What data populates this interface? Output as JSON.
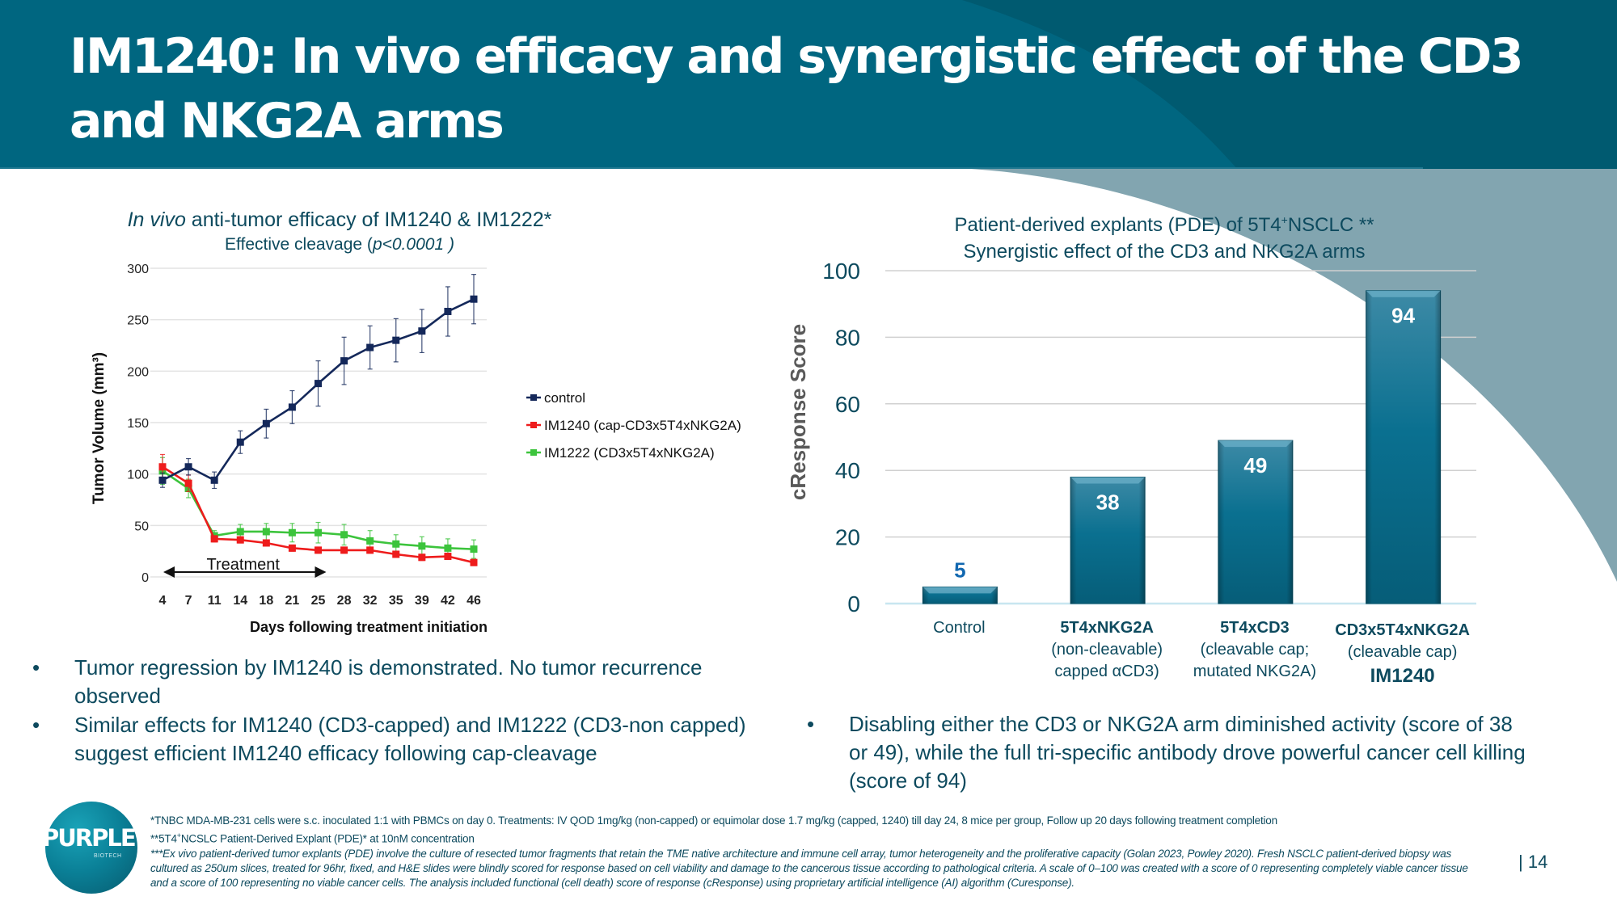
{
  "slide": {
    "title": "IM1240: In vivo efficacy and synergistic effect of the CD3 and NKG2A arms",
    "page_number": "| 14",
    "colors": {
      "header": "#006680",
      "header_dark": "#005a70",
      "accent_light": "#82a5b0",
      "text": "#0d4a5e"
    }
  },
  "left_chart_header": {
    "title_italic": "In vivo",
    "title_rest": " anti-tumor efficacy of IM1240 & IM1222*",
    "subtitle_prefix": "Effective cleavage (",
    "subtitle_italic": "p<0.0001 )"
  },
  "right_chart_header": {
    "title_prefix": "Patient-derived explants (PDE) of 5T4",
    "title_sup": "+",
    "title_suffix": "NSCLC **",
    "subtitle": "Synergistic effect of the CD3 and NKG2A arms"
  },
  "chart_data": [
    {
      "type": "line",
      "title": "In vivo anti-tumor efficacy of IM1240 & IM1222*",
      "subtitle": "Effective cleavage (p<0.0001 )",
      "xlabel": "Days following treatment initiation",
      "ylabel": "Tumor Volume (mm³)",
      "x": [
        "4",
        "7",
        "11",
        "14",
        "18",
        "21",
        "25",
        "28",
        "32",
        "35",
        "39",
        "42",
        "46"
      ],
      "ylim": [
        0,
        300
      ],
      "yticks": [
        0,
        50,
        100,
        150,
        200,
        250,
        300
      ],
      "grid": true,
      "legend_position": "right",
      "series": [
        {
          "name": "control",
          "color": "#14285a",
          "values": [
            94,
            107,
            94,
            131,
            149,
            165,
            188,
            210,
            223,
            230,
            239,
            258,
            270
          ],
          "error": [
            7,
            8,
            8,
            11,
            14,
            16,
            22,
            23,
            21,
            21,
            21,
            24,
            24
          ]
        },
        {
          "name": "IM1240 (cap-CD3x5T4xNKG2A)",
          "color": "#ee1c1c",
          "values": [
            107,
            91,
            37,
            36,
            33,
            28,
            26,
            26,
            26,
            22,
            19,
            20,
            14
          ],
          "error": [
            12,
            8,
            3,
            3,
            3,
            3,
            3,
            3,
            3,
            3,
            3,
            3,
            3
          ]
        },
        {
          "name": "IM1222 (CD3x5T4xNKG2A)",
          "color": "#3cc43c",
          "values": [
            103,
            86,
            40,
            44,
            44,
            43,
            43,
            41,
            35,
            32,
            30,
            28,
            27
          ],
          "error": [
            13,
            9,
            5,
            7,
            8,
            9,
            10,
            10,
            10,
            9,
            9,
            9,
            9
          ]
        }
      ],
      "annotations": [
        {
          "text": "Treatment",
          "type": "double-arrow",
          "x_from": "4",
          "x_to": "25"
        }
      ]
    },
    {
      "type": "bar",
      "title": "Patient-derived explants (PDE) of 5T4+NSCLC **",
      "subtitle": "Synergistic effect of the CD3 and NKG2A arms",
      "ylabel": "cResponse Score",
      "xlabel": "",
      "ylim": [
        0,
        100
      ],
      "yticks": [
        0,
        20,
        40,
        60,
        80,
        100
      ],
      "grid": true,
      "categories": [
        "Control",
        "5T4xNKG2A (non-cleavable) capped αCD3)",
        "5T4xCD3 (cleavable cap; mutated NKG2A)",
        "CD3x5T4xNKG2A (cleavable cap) IM1240"
      ],
      "values": [
        5,
        38,
        49,
        94
      ],
      "data_labels": [
        "5",
        "38",
        "49",
        "94"
      ],
      "bar_color": "#0a6d8c"
    }
  ],
  "right_categories": [
    {
      "lines": [
        "Control"
      ],
      "bold_first": false
    },
    {
      "lines": [
        "5T4xNKG2A",
        "(non-cleavable)",
        "capped αCD3)"
      ],
      "bold_first": true
    },
    {
      "lines": [
        "5T4xCD3",
        "(cleavable cap;",
        "mutated NKG2A)"
      ],
      "bold_first": true
    },
    {
      "lines": [
        "CD3x5T4xNKG2A",
        "(cleavable cap)",
        "IM1240"
      ],
      "bold_first": true
    }
  ],
  "left_bullets": [
    "Tumor regression by IM1240 is demonstrated. No tumor recurrence observed",
    "Similar effects for IM1240 (CD3-capped) and IM1222 (CD3-non capped) suggest efficient IM1240 efficacy following cap-cleavage"
  ],
  "right_bullets": [
    "Disabling either the CD3 or NKG2A arm diminished activity (score of 38 or 49), while the full tri-specific antibody drove powerful cancer cell killing (score of 94)"
  ],
  "bullet_glyph": "•",
  "footnotes": {
    "f1": "*TNBC MDA-MB-231 cells were s.c. inoculated 1:1 with PBMCs on day 0. Treatments: IV QOD 1mg/kg (non-capped) or  equimolar dose 1.7 mg/kg (capped, 1240) till day 24, 8 mice per group, Follow up 20 days following treatment completion",
    "f2_prefix": "**5T4",
    "f2_sup": "+",
    "f2_suffix": "NCSLC Patient-Derived Explant (PDE)* at 10nM concentration",
    "f3": "***Ex vivo patient-derived tumor explants (PDE) involve the culture of resected tumor fragments that retain the TME native architecture and immune cell array, tumor heterogeneity and the proliferative capacity (Golan 2023, Powley 2020). Fresh NSCLC patient-derived biopsy was cultured as 250um slices, treated for 96hr, fixed, and H&E slides were blindly scored for response based on cell viability and damage to the cancerous tissue according to pathological criteria. A scale of 0–100 was created with a score of 0 representing completely viable cancer tissue and a score of 100 representing no viable cancer cells. The analysis included functional (cell death) score of response (cResponse) using proprietary artificial intelligence (AI) algorithm (Curesponse)."
  },
  "logo": {
    "name": "PURPLE",
    "sub": "BIOTECH"
  }
}
